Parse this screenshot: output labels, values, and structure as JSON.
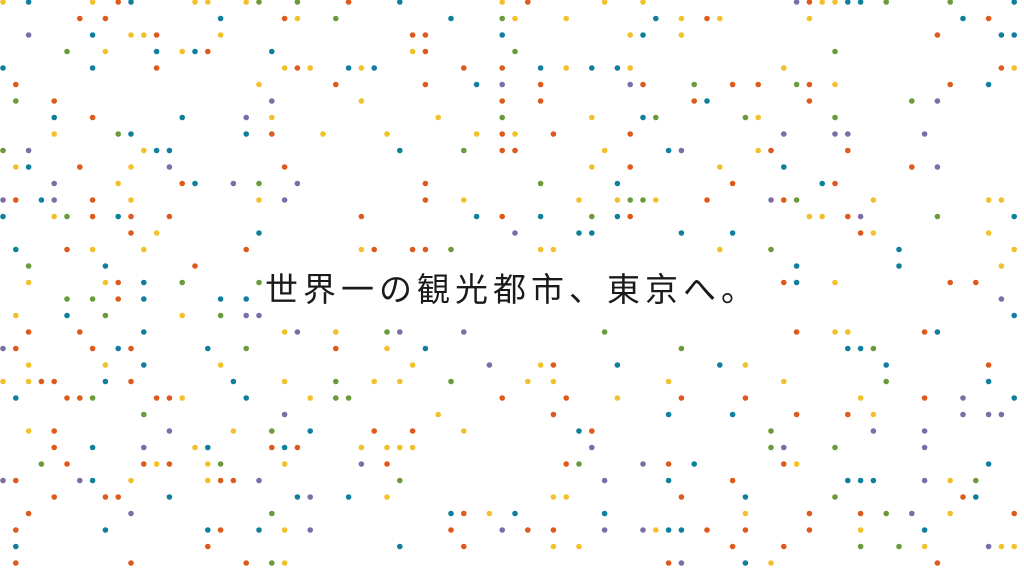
{
  "headline": "世界一の観光都市、東京へ。",
  "dot_colors": {
    "teal": "#0e7f9c",
    "yellow": "#f2c02a",
    "orange": "#de5a1c",
    "green": "#6a9a3a",
    "purple": "#7b6ea6"
  }
}
